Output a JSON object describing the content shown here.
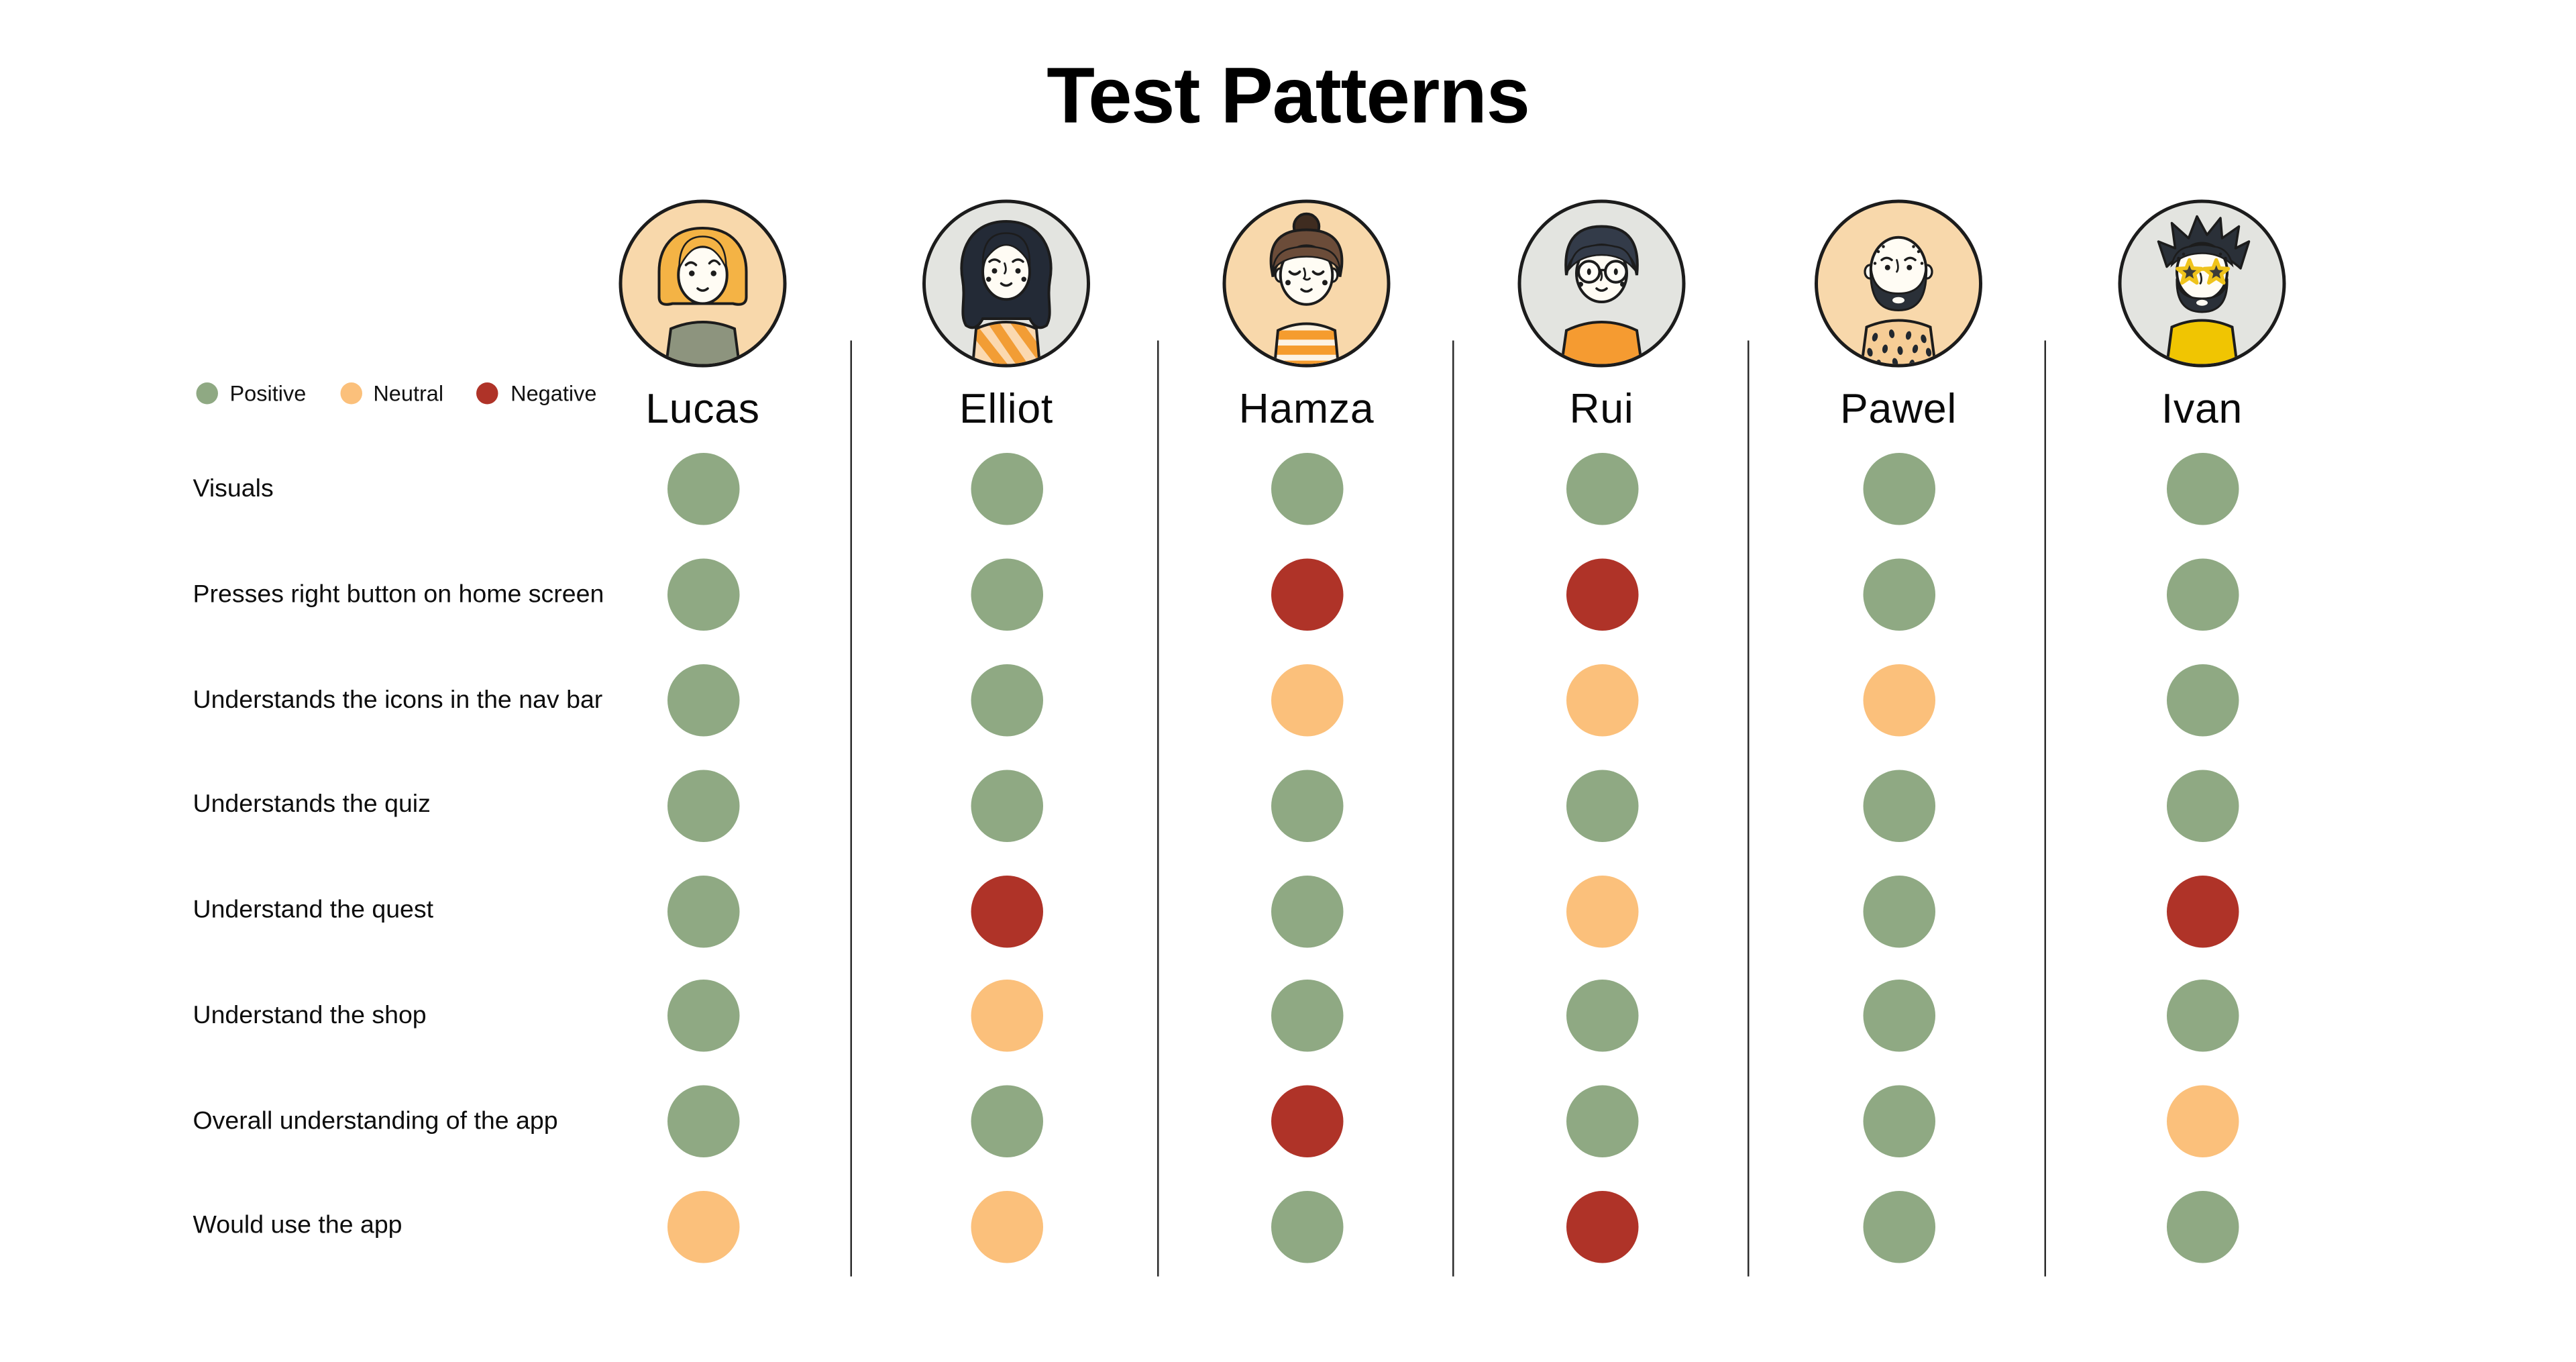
{
  "title": "Test Patterns",
  "legend": [
    {
      "label": "Positive",
      "color": "#8FA983"
    },
    {
      "label": "Neutral",
      "color": "#FBC07B"
    },
    {
      "label": "Negative",
      "color": "#AF3328"
    }
  ],
  "status_colors": {
    "positive": "#8FA983",
    "neutral": "#FBC07B",
    "negative": "#AF3328"
  },
  "avatar_colors": {
    "peach_background": "#F8D8AB",
    "gray_background": "#E3E4E0"
  },
  "people": [
    {
      "name": "Lucas",
      "avatar": "blonde-bob-girl",
      "circle": "peach"
    },
    {
      "name": "Elliot",
      "avatar": "dark-wavy-hair-striped-top",
      "circle": "gray"
    },
    {
      "name": "Hamza",
      "avatar": "hair-bun-striped-shirt",
      "circle": "peach"
    },
    {
      "name": "Rui",
      "avatar": "round-glasses-orange-shirt",
      "circle": "gray"
    },
    {
      "name": "Pawel",
      "avatar": "bald-beard-dotted-shirt",
      "circle": "peach"
    },
    {
      "name": "Ivan",
      "avatar": "star-sunglasses-beard",
      "circle": "gray"
    }
  ],
  "criteria": [
    "Visuals",
    "Presses right button on home screen",
    "Understands the icons in the nav bar",
    "Understands the quiz",
    "Understand the quest",
    "Understand the shop",
    "Overall understanding of the app",
    "Would use the app"
  ],
  "ratings": [
    [
      "positive",
      "positive",
      "positive",
      "positive",
      "positive",
      "positive"
    ],
    [
      "positive",
      "positive",
      "negative",
      "negative",
      "positive",
      "positive"
    ],
    [
      "positive",
      "positive",
      "neutral",
      "neutral",
      "neutral",
      "positive"
    ],
    [
      "positive",
      "positive",
      "positive",
      "positive",
      "positive",
      "positive"
    ],
    [
      "positive",
      "negative",
      "positive",
      "neutral",
      "positive",
      "negative"
    ],
    [
      "positive",
      "neutral",
      "positive",
      "positive",
      "positive",
      "positive"
    ],
    [
      "positive",
      "positive",
      "negative",
      "positive",
      "positive",
      "neutral"
    ],
    [
      "neutral",
      "neutral",
      "positive",
      "negative",
      "positive",
      "positive"
    ]
  ],
  "chart_data": {
    "type": "table",
    "title": "Test Patterns",
    "columns": [
      "Lucas",
      "Elliot",
      "Hamza",
      "Rui",
      "Pawel",
      "Ivan"
    ],
    "rows": [
      {
        "label": "Visuals",
        "values": [
          "positive",
          "positive",
          "positive",
          "positive",
          "positive",
          "positive"
        ]
      },
      {
        "label": "Presses right button on home screen",
        "values": [
          "positive",
          "positive",
          "negative",
          "negative",
          "positive",
          "positive"
        ]
      },
      {
        "label": "Understands the icons in the nav bar",
        "values": [
          "positive",
          "positive",
          "neutral",
          "neutral",
          "neutral",
          "positive"
        ]
      },
      {
        "label": "Understands the quiz",
        "values": [
          "positive",
          "positive",
          "positive",
          "positive",
          "positive",
          "positive"
        ]
      },
      {
        "label": "Understand the quest",
        "values": [
          "positive",
          "negative",
          "positive",
          "neutral",
          "positive",
          "negative"
        ]
      },
      {
        "label": "Understand the shop",
        "values": [
          "positive",
          "neutral",
          "positive",
          "positive",
          "positive",
          "positive"
        ]
      },
      {
        "label": "Overall understanding of the app",
        "values": [
          "positive",
          "positive",
          "negative",
          "positive",
          "positive",
          "neutral"
        ]
      },
      {
        "label": "Would use the app",
        "values": [
          "neutral",
          "neutral",
          "positive",
          "negative",
          "positive",
          "positive"
        ]
      }
    ],
    "legend": [
      "Positive",
      "Neutral",
      "Negative"
    ],
    "legend_position": "top-left",
    "grid": "off"
  }
}
